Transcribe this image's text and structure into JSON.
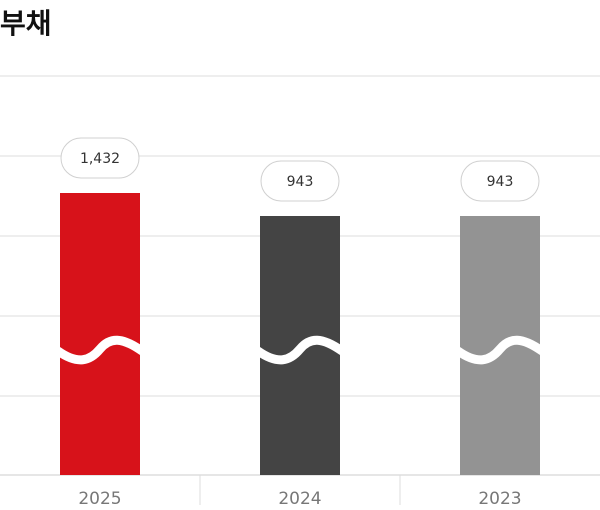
{
  "title": "부채",
  "chart_data": {
    "type": "bar",
    "title": "부채",
    "categories": [
      "2025",
      "2024",
      "2023"
    ],
    "values": [
      1432,
      943,
      943
    ],
    "value_labels": [
      "1,432",
      "943",
      "943"
    ],
    "colors": [
      "#d7121a",
      "#444444",
      "#939393"
    ],
    "axis_break": true,
    "grid": true,
    "legend": "none"
  }
}
